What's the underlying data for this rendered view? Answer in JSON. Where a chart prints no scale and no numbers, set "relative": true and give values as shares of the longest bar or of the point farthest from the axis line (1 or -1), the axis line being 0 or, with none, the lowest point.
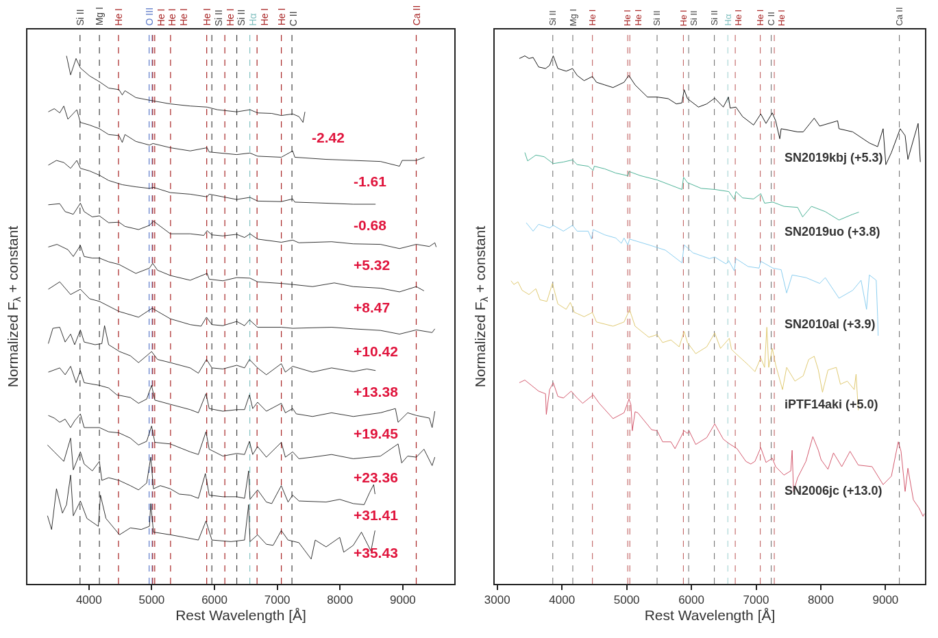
{
  "chart_data": [
    {
      "type": "line",
      "relative": true,
      "tick_labels": "x",
      "xlim": [
        3020,
        9820
      ],
      "xticks": [
        4000,
        5000,
        6000,
        7000,
        8000,
        9000
      ],
      "xlabel": "Rest Wavelength [Å]",
      "ylabel": "Normalized F$_{λ}$ + constant",
      "series": [
        {
          "name": "-2.42",
          "color": "#000000",
          "x": [
            3643,
            3708,
            3795,
            3864,
            4011,
            4167,
            4314,
            4479,
            4531,
            4574,
            4747,
            4964,
            5297,
            5613,
            5882,
            6046,
            6354,
            6566,
            6687,
            6912,
            7064,
            7246,
            7345,
            7410,
            7441
          ],
          "values": [
            1.0,
            0.964,
            0.995,
            0.977,
            0.962,
            0.951,
            0.939,
            0.936,
            0.926,
            0.934,
            0.921,
            0.916,
            0.909,
            0.905,
            0.903,
            0.898,
            0.894,
            0.898,
            0.892,
            0.891,
            0.887,
            0.89,
            0.885,
            0.874,
            0.894
          ]
        },
        {
          "name": "-1.61",
          "color": "#000000",
          "x": [
            3353,
            3448,
            3535,
            3600,
            3665,
            3807,
            3864,
            4011,
            4167,
            4314,
            4479,
            4531,
            4574,
            4747,
            4964,
            5020,
            5297,
            5613,
            5882,
            5916,
            6354,
            6566,
            6687,
            7064,
            7246,
            7280,
            7778,
            8211,
            8644,
            8947,
            8990,
            9215,
            9345
          ],
          "values": [
            0.894,
            0.9,
            0.892,
            0.905,
            0.88,
            0.898,
            0.874,
            0.869,
            0.862,
            0.851,
            0.849,
            0.836,
            0.851,
            0.838,
            0.831,
            0.834,
            0.826,
            0.82,
            0.826,
            0.818,
            0.813,
            0.816,
            0.81,
            0.808,
            0.82,
            0.808,
            0.804,
            0.802,
            0.8,
            0.791,
            0.802,
            0.802,
            0.808
          ]
        },
        {
          "name": "-0.68",
          "color": "#000000",
          "x": [
            3353,
            3483,
            3600,
            3708,
            3807,
            3864,
            4011,
            4167,
            4314,
            4531,
            4747,
            4964,
            5028,
            5297,
            5613,
            5882,
            5916,
            6354,
            6566,
            6687,
            7064,
            7246,
            7280,
            7778,
            8211,
            8566
          ],
          "values": [
            0.793,
            0.802,
            0.798,
            0.787,
            0.802,
            0.787,
            0.782,
            0.774,
            0.764,
            0.756,
            0.752,
            0.749,
            0.751,
            0.741,
            0.738,
            0.733,
            0.738,
            0.728,
            0.732,
            0.725,
            0.724,
            0.729,
            0.723,
            0.721,
            0.719,
            0.719
          ]
        },
        {
          "name": "+5.32",
          "color": "#000000",
          "x": [
            3353,
            3535,
            3621,
            3751,
            3864,
            3924,
            4054,
            4167,
            4314,
            4479,
            4574,
            4790,
            4964,
            5028,
            5297,
            5613,
            5830,
            5882,
            5959,
            6133,
            6354,
            6479,
            6566,
            6687,
            7064,
            7246,
            7345,
            7865,
            8211,
            8644,
            8947,
            9215,
            9423,
            9510,
            9532
          ],
          "values": [
            0.718,
            0.72,
            0.705,
            0.7,
            0.721,
            0.705,
            0.695,
            0.697,
            0.684,
            0.685,
            0.677,
            0.671,
            0.679,
            0.687,
            0.663,
            0.663,
            0.66,
            0.669,
            0.661,
            0.659,
            0.662,
            0.656,
            0.663,
            0.653,
            0.647,
            0.651,
            0.646,
            0.648,
            0.644,
            0.643,
            0.635,
            0.643,
            0.639,
            0.646,
            0.638
          ]
        },
        {
          "name": "+8.47",
          "color": "#000000",
          "x": [
            3353,
            3491,
            3665,
            3751,
            3864,
            3924,
            4054,
            4167,
            4314,
            4479,
            4747,
            4964,
            5016,
            5093,
            5297,
            5613,
            5882,
            5916,
            6133,
            6354,
            6566,
            6687,
            7064,
            7246,
            7562,
            7908,
            8211,
            8644,
            8947,
            9215,
            9337
          ],
          "values": [
            0.638,
            0.643,
            0.633,
            0.62,
            0.641,
            0.62,
            0.617,
            0.617,
            0.61,
            0.605,
            0.588,
            0.598,
            0.607,
            0.594,
            0.584,
            0.575,
            0.588,
            0.577,
            0.574,
            0.58,
            0.579,
            0.572,
            0.569,
            0.567,
            0.563,
            0.57,
            0.563,
            0.56,
            0.553,
            0.563,
            0.555
          ]
        },
        {
          "name": "+10.42",
          "color": "#000000",
          "x": [
            3353,
            3535,
            3708,
            3864,
            4011,
            4167,
            4479,
            4790,
            5007,
            5297,
            5613,
            5786,
            5873,
            5959,
            6133,
            6354,
            6479,
            6557,
            6687,
            7064,
            7246,
            7865,
            8211,
            8644,
            8947,
            9215,
            9467,
            9510
          ],
          "values": [
            0.558,
            0.572,
            0.548,
            0.558,
            0.54,
            0.535,
            0.516,
            0.505,
            0.522,
            0.502,
            0.491,
            0.488,
            0.505,
            0.491,
            0.489,
            0.497,
            0.489,
            0.5,
            0.486,
            0.486,
            0.484,
            0.486,
            0.483,
            0.48,
            0.473,
            0.481,
            0.476,
            0.483
          ]
        },
        {
          "name": "+13.38",
          "color": "#000000",
          "x": [
            3353,
            3426,
            3535,
            3621,
            3708,
            3773,
            3864,
            3924,
            4098,
            4206,
            4249,
            4314,
            4487,
            4660,
            4790,
            4920,
            4998,
            5093,
            5297,
            5613,
            5743,
            5873,
            5959,
            6133,
            6354,
            6479,
            6557,
            6687,
            6826,
            7064,
            7129,
            7246,
            7562,
            7865,
            8211,
            8428,
            8566
          ],
          "values": [
            0.455,
            0.484,
            0.486,
            0.458,
            0.473,
            0.453,
            0.481,
            0.458,
            0.453,
            0.455,
            0.489,
            0.453,
            0.44,
            0.432,
            0.419,
            0.432,
            0.44,
            0.425,
            0.419,
            0.409,
            0.399,
            0.425,
            0.409,
            0.407,
            0.414,
            0.409,
            0.425,
            0.409,
            0.396,
            0.417,
            0.401,
            0.412,
            0.401,
            0.409,
            0.402,
            0.407,
            0.404
          ]
        },
        {
          "name": "+19.45",
          "color": "#000000",
          "x": [
            3353,
            3535,
            3621,
            3708,
            3795,
            3864,
            3924,
            4167,
            4314,
            4444,
            4660,
            4790,
            4920,
            4998,
            5050,
            5297,
            5613,
            5743,
            5864,
            5916,
            6133,
            6354,
            6479,
            6557,
            6609,
            6687,
            6826,
            7064,
            7129,
            7246,
            7302,
            7562,
            7865,
            8211,
            8644,
            8882,
            8925,
            9077,
            9215,
            9423,
            9467,
            9510
          ],
          "values": [
            0.401,
            0.409,
            0.396,
            0.412,
            0.381,
            0.404,
            0.381,
            0.376,
            0.371,
            0.358,
            0.353,
            0.342,
            0.35,
            0.376,
            0.348,
            0.34,
            0.33,
            0.324,
            0.36,
            0.332,
            0.327,
            0.33,
            0.33,
            0.358,
            0.332,
            0.344,
            0.327,
            0.342,
            0.324,
            0.332,
            0.322,
            0.317,
            0.324,
            0.317,
            0.324,
            0.332,
            0.306,
            0.324,
            0.319,
            0.314,
            0.296,
            0.327
          ]
        },
        {
          "name": "+23.36",
          "color": "#000000",
          "x": [
            3353,
            3448,
            3535,
            3621,
            3708,
            3773,
            3864,
            3924,
            4167,
            4314,
            4479,
            4660,
            4790,
            4920,
            4998,
            5050,
            5297,
            5613,
            5743,
            5864,
            5916,
            6133,
            6354,
            6479,
            6557,
            6609,
            6687,
            6826,
            7064,
            7129,
            7246,
            7345,
            7562,
            7865,
            8211,
            8644,
            8925,
            8982,
            9077,
            9215,
            9337,
            9467,
            9510
          ],
          "values": [
            0.319,
            0.314,
            0.306,
            0.312,
            0.296,
            0.309,
            0.322,
            0.296,
            0.296,
            0.288,
            0.286,
            0.276,
            0.263,
            0.27,
            0.299,
            0.268,
            0.265,
            0.25,
            0.245,
            0.288,
            0.255,
            0.242,
            0.247,
            0.245,
            0.27,
            0.245,
            0.26,
            0.24,
            0.268,
            0.24,
            0.25,
            0.237,
            0.24,
            0.245,
            0.237,
            0.242,
            0.265,
            0.229,
            0.242,
            0.24,
            0.255,
            0.224,
            0.24
          ]
        },
        {
          "name": "+31.41",
          "color": "#000000",
          "x": [
            3340,
            3448,
            3600,
            3708,
            3751,
            3864,
            3924,
            4054,
            4167,
            4206,
            4314,
            4479,
            4660,
            4790,
            4920,
            4985,
            5028,
            5137,
            5297,
            5440,
            5613,
            5743,
            5855,
            5916,
            6133,
            6354,
            6479,
            6544,
            6566,
            6687,
            6826,
            6912,
            7064,
            7172,
            7246,
            7345,
            7778,
            7995,
            8211,
            8384,
            8471,
            8536,
            8557
          ],
          "values": [
            0.263,
            0.25,
            0.232,
            0.276,
            0.216,
            0.25,
            0.227,
            0.214,
            0.232,
            0.196,
            0.201,
            0.196,
            0.186,
            0.178,
            0.191,
            0.24,
            0.18,
            0.186,
            0.18,
            0.17,
            0.168,
            0.162,
            0.209,
            0.168,
            0.165,
            0.165,
            0.162,
            0.214,
            0.16,
            0.178,
            0.155,
            0.152,
            0.186,
            0.155,
            0.168,
            0.157,
            0.155,
            0.16,
            0.152,
            0.15,
            0.173,
            0.188,
            0.17
          ]
        },
        {
          "name": "+35.43",
          "color": "#000000",
          "x": [
            3340,
            3405,
            3483,
            3578,
            3643,
            3708,
            3751,
            3864,
            3968,
            4150,
            4184,
            4271,
            4487,
            4660,
            4834,
            4964,
            4985,
            5028,
            5297,
            5526,
            5743,
            5864,
            5959,
            6263,
            6479,
            6544,
            6566,
            6687,
            6826,
            6934,
            7064,
            7172,
            7345,
            7540,
            7605,
            7778,
            7995,
            8059,
            8211,
            8341,
            8493,
            8557
          ],
          "values": [
            0.129,
            0.103,
            0.18,
            0.134,
            0.15,
            0.206,
            0.129,
            0.157,
            0.124,
            0.109,
            0.168,
            0.124,
            0.093,
            0.106,
            0.103,
            0.109,
            0.152,
            0.098,
            0.093,
            0.088,
            0.083,
            0.119,
            0.083,
            0.08,
            0.083,
            0.15,
            0.08,
            0.093,
            0.075,
            0.073,
            0.101,
            0.083,
            0.078,
            0.047,
            0.083,
            0.07,
            0.088,
            0.06,
            0.073,
            0.098,
            0.062,
            0.101
          ]
        }
      ],
      "ref_lines": [
        {
          "axis": "x",
          "value": 3858,
          "label": "Si II",
          "color": "#404040",
          "line_style": "dashed"
        },
        {
          "axis": "x",
          "value": 4167,
          "label": "Mg I",
          "color": "#404040",
          "line_style": "dashed"
        },
        {
          "axis": "x",
          "value": 4471,
          "label": "He I",
          "color": "#a82424",
          "line_style": "dashed"
        },
        {
          "axis": "x",
          "value": 4959,
          "label": "O III",
          "color": "#5a78c8",
          "line_style": "dashed"
        },
        {
          "axis": "x",
          "value": 5007,
          "label": null,
          "color": "#5a78c8",
          "line_style": "dashed"
        },
        {
          "axis": "x",
          "value": 5016,
          "label": "He I",
          "color": "#a82424",
          "line_style": "dashed"
        },
        {
          "axis": "x",
          "value": 5048,
          "label": "He I",
          "color": "#a82424",
          "line_style": "dashed"
        },
        {
          "axis": "x",
          "value": 5300,
          "label": "He I",
          "color": "#a82424",
          "line_style": "dashed"
        },
        {
          "axis": "x",
          "value": 5876,
          "label": "He I",
          "color": "#a82424",
          "line_style": "dashed"
        },
        {
          "axis": "x",
          "value": 5958,
          "label": "Si II",
          "color": "#404040",
          "line_style": "dashed"
        },
        {
          "axis": "x",
          "value": 6165,
          "label": "He I",
          "color": "#a82424",
          "line_style": "dashed"
        },
        {
          "axis": "x",
          "value": 6355,
          "label": "Si II",
          "color": "#404040",
          "line_style": "dashed"
        },
        {
          "axis": "x",
          "value": 6563,
          "label": "Hα",
          "color": "#7fbfbf",
          "line_style": "dashed"
        },
        {
          "axis": "x",
          "value": 6678,
          "label": "He I",
          "color": "#a82424",
          "line_style": "dashed"
        },
        {
          "axis": "x",
          "value": 7065,
          "label": "He I",
          "color": "#a82424",
          "line_style": "dashed"
        },
        {
          "axis": "x",
          "value": 7234,
          "label": "C II",
          "color": "#404040",
          "line_style": "dashed"
        },
        {
          "axis": "x",
          "value": 9214,
          "label": "Ca II",
          "color": "#a82424",
          "line_style": "dashed"
        }
      ]
    },
    {
      "type": "line",
      "relative": true,
      "tick_labels": "x",
      "xlim": [
        2960,
        9610
      ],
      "xticks": [
        3000,
        4000,
        5000,
        6000,
        7000,
        8000,
        9000
      ],
      "xlabel": "Rest Wavelength [Å]",
      "ylabel": "Normalized F$_{λ}$ + constant",
      "series": [
        {
          "name": "SN2019kbj (+5.3)",
          "color": "#000000",
          "x": [
            3341,
            3426,
            3490,
            3554,
            3639,
            3746,
            3809,
            3865,
            3937,
            4065,
            4163,
            4235,
            4342,
            4470,
            4533,
            4661,
            4789,
            4959,
            5032,
            5130,
            5321,
            5470,
            5641,
            5768,
            5854,
            5888,
            5939,
            6109,
            6237,
            6361,
            6493,
            6573,
            6599,
            6688,
            6791,
            6961,
            7072,
            7153,
            7251,
            7302,
            7366,
            7387,
            7642,
            7728,
            7898,
            7983,
            8260,
            8281,
            8494,
            8750,
            8878,
            8963,
            9005,
            9091,
            9227,
            9303,
            9346,
            9431,
            9504,
            9538
          ],
          "values": [
            0.995,
            1.0,
            0.995,
            0.997,
            0.979,
            0.976,
            0.982,
            1.0,
            0.976,
            0.971,
            0.976,
            0.963,
            0.953,
            0.961,
            0.95,
            0.945,
            0.94,
            0.95,
            0.963,
            0.945,
            0.922,
            0.922,
            0.919,
            0.909,
            0.911,
            0.936,
            0.919,
            0.903,
            0.909,
            0.92,
            0.903,
            0.922,
            0.901,
            0.903,
            0.885,
            0.869,
            0.89,
            0.872,
            0.892,
            0.877,
            0.843,
            0.862,
            0.856,
            0.856,
            0.882,
            0.867,
            0.877,
            0.862,
            0.856,
            0.835,
            0.828,
            0.862,
            0.794,
            0.817,
            0.862,
            0.849,
            0.804,
            0.841,
            0.872,
            0.799
          ]
        },
        {
          "name": "SN2019uo (+3.8)",
          "color": "#3aaa8c",
          "x": [
            3426,
            3469,
            3596,
            3724,
            3865,
            4022,
            4163,
            4235,
            4406,
            4482,
            4499,
            4661,
            4832,
            5019,
            5036,
            5215,
            5470,
            5683,
            5854,
            5879,
            5939,
            6152,
            6361,
            6578,
            6663,
            6688,
            6791,
            6961,
            7072,
            7131,
            7259,
            7430,
            7642,
            7719,
            7856,
            8069,
            8281,
            8494,
            8588
          ],
          "values": [
            0.817,
            0.801,
            0.812,
            0.809,
            0.796,
            0.799,
            0.803,
            0.794,
            0.791,
            0.783,
            0.791,
            0.786,
            0.778,
            0.773,
            0.781,
            0.773,
            0.765,
            0.755,
            0.747,
            0.77,
            0.76,
            0.749,
            0.747,
            0.743,
            0.728,
            0.743,
            0.731,
            0.729,
            0.739,
            0.721,
            0.723,
            0.715,
            0.713,
            0.695,
            0.715,
            0.705,
            0.689,
            0.7,
            0.704
          ]
        },
        {
          "name": "SN2010al (+3.9)",
          "color": "#7ec8ee",
          "x": [
            3447,
            3554,
            3639,
            3809,
            3865,
            4022,
            4163,
            4235,
            4406,
            4457,
            4482,
            4661,
            4832,
            4917,
            4959,
            5019,
            5045,
            5343,
            5598,
            5854,
            5888,
            6024,
            6280,
            6361,
            6535,
            6578,
            6663,
            6688,
            6876,
            7046,
            7072,
            7259,
            7387,
            7472,
            7557,
            7770,
            7983,
            8069,
            8281,
            8494,
            8622,
            8707,
            8750,
            8856,
            8878,
            8886
          ],
          "values": [
            0.684,
            0.668,
            0.681,
            0.674,
            0.679,
            0.668,
            0.679,
            0.668,
            0.668,
            0.653,
            0.671,
            0.661,
            0.655,
            0.645,
            0.655,
            0.642,
            0.653,
            0.642,
            0.632,
            0.608,
            0.642,
            0.627,
            0.616,
            0.619,
            0.606,
            0.612,
            0.593,
            0.616,
            0.601,
            0.598,
            0.611,
            0.598,
            0.595,
            0.551,
            0.585,
            0.58,
            0.569,
            0.58,
            0.541,
            0.556,
            0.575,
            0.52,
            0.585,
            0.575,
            0.507,
            0.47
          ]
        },
        {
          "name": "iPTF14aki (+5.0)",
          "color": "#dcc464",
          "x": [
            3213,
            3256,
            3320,
            3384,
            3490,
            3596,
            3660,
            3767,
            3852,
            3937,
            4065,
            4129,
            4193,
            4235,
            4342,
            4470,
            4533,
            4789,
            4959,
            5045,
            5130,
            5343,
            5470,
            5556,
            5683,
            5811,
            5888,
            5939,
            6067,
            6237,
            6361,
            6450,
            6586,
            6620,
            6688,
            6876,
            6982,
            7072,
            7131,
            7166,
            7195,
            7251,
            7302,
            7408,
            7472,
            7600,
            7728,
            7813,
            7898,
            7962,
            8026,
            8111,
            8239,
            8303,
            8409,
            8516,
            8545,
            8579
          ],
          "values": [
            0.574,
            0.567,
            0.572,
            0.556,
            0.548,
            0.559,
            0.538,
            0.535,
            0.569,
            0.53,
            0.52,
            0.533,
            0.514,
            0.512,
            0.506,
            0.514,
            0.496,
            0.488,
            0.496,
            0.519,
            0.488,
            0.467,
            0.472,
            0.457,
            0.462,
            0.449,
            0.478,
            0.457,
            0.436,
            0.449,
            0.475,
            0.446,
            0.465,
            0.444,
            0.436,
            0.415,
            0.402,
            0.428,
            0.41,
            0.486,
            0.41,
            0.446,
            0.415,
            0.368,
            0.41,
            0.384,
            0.394,
            0.425,
            0.431,
            0.405,
            0.363,
            0.405,
            0.41,
            0.378,
            0.384,
            0.368,
            0.397,
            0.329
          ]
        },
        {
          "name": "SN2006jc (+13.0)",
          "color": "#cf4a60",
          "x": [
            3341,
            3426,
            3639,
            3746,
            3758,
            3809,
            3865,
            3937,
            4022,
            4142,
            4235,
            4320,
            4482,
            4576,
            4789,
            4959,
            5036,
            5066,
            5087,
            5130,
            5172,
            5385,
            5470,
            5556,
            5683,
            5747,
            5888,
            5939,
            5964,
            6067,
            6237,
            6361,
            6493,
            6578,
            6706,
            6842,
            6918,
            6982,
            7072,
            7153,
            7251,
            7302,
            7430,
            7536,
            7557,
            7579,
            7642,
            7770,
            7877,
            7962,
            8005,
            8111,
            8196,
            8324,
            8452,
            8579,
            8792,
            8963,
            9091,
            9197,
            9240,
            9303,
            9346,
            9431,
            9516,
            9580,
            9601
          ],
          "values": [
            0.381,
            0.386,
            0.365,
            0.36,
            0.321,
            0.368,
            0.381,
            0.355,
            0.352,
            0.365,
            0.352,
            0.342,
            0.358,
            0.342,
            0.313,
            0.324,
            0.35,
            0.339,
            0.29,
            0.326,
            0.324,
            0.292,
            0.29,
            0.269,
            0.269,
            0.256,
            0.29,
            0.285,
            0.29,
            0.264,
            0.277,
            0.303,
            0.274,
            0.266,
            0.256,
            0.232,
            0.227,
            0.232,
            0.258,
            0.23,
            0.238,
            0.222,
            0.206,
            0.214,
            0.253,
            0.175,
            0.201,
            0.232,
            0.279,
            0.253,
            0.235,
            0.217,
            0.248,
            0.222,
            0.251,
            0.225,
            0.222,
            0.188,
            0.204,
            0.269,
            0.251,
            0.175,
            0.219,
            0.159,
            0.144,
            0.128,
            0.133
          ]
        }
      ],
      "ref_lines": [
        {
          "axis": "x",
          "value": 3858,
          "label": "Si II",
          "color": "#404040",
          "line_style": "dashed"
        },
        {
          "axis": "x",
          "value": 4167,
          "label": "Mg I",
          "color": "#404040",
          "line_style": "dashed"
        },
        {
          "axis": "x",
          "value": 4471,
          "label": "He I",
          "color": "#a82424",
          "line_style": "dashed"
        },
        {
          "axis": "x",
          "value": 5016,
          "label": "He I",
          "color": "#a82424",
          "line_style": "dashed"
        },
        {
          "axis": "x",
          "value": 5048,
          "label": "He I",
          "color": "#a82424",
          "line_style": "dashed"
        },
        {
          "axis": "x",
          "value": 5470,
          "label": "Si II",
          "color": "#404040",
          "line_style": "dashed"
        },
        {
          "axis": "x",
          "value": 5876,
          "label": "He I",
          "color": "#a82424",
          "line_style": "dashed"
        },
        {
          "axis": "x",
          "value": 5958,
          "label": "Si II",
          "color": "#404040",
          "line_style": "dashed"
        },
        {
          "axis": "x",
          "value": 6355,
          "label": "Si II",
          "color": "#404040",
          "line_style": "dashed"
        },
        {
          "axis": "x",
          "value": 6563,
          "label": "Hα",
          "color": "#7fbfbf",
          "line_style": "dashed"
        },
        {
          "axis": "x",
          "value": 6678,
          "label": "He I",
          "color": "#a82424",
          "line_style": "dashed"
        },
        {
          "axis": "x",
          "value": 7065,
          "label": "He I",
          "color": "#a82424",
          "line_style": "dashed"
        },
        {
          "axis": "x",
          "value": 7234,
          "label": "C II",
          "color": "#404040",
          "line_style": "dashed"
        },
        {
          "axis": "x",
          "value": 7281,
          "label": "He I",
          "color": "#a82424",
          "line_style": "dashed"
        },
        {
          "axis": "x",
          "value": 9214,
          "label": "Ca II",
          "color": "#404040",
          "line_style": "dashed"
        }
      ]
    }
  ]
}
